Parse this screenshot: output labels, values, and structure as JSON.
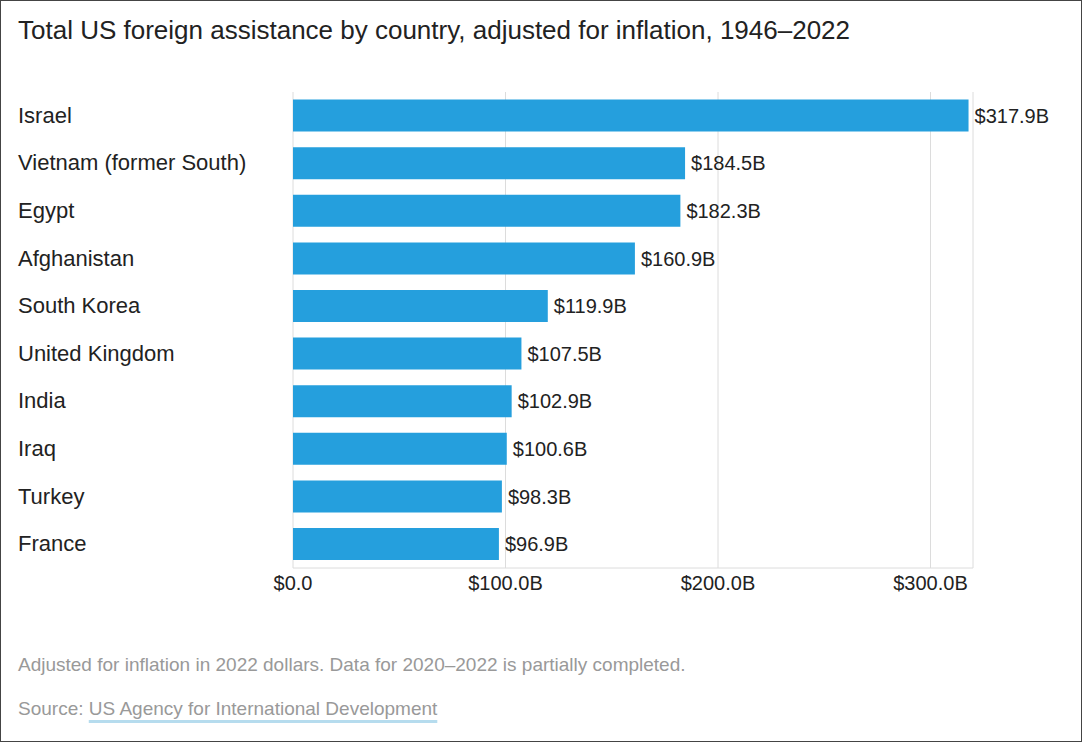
{
  "chart_data": {
    "type": "bar",
    "title": "Total US foreign assistance by country, adjusted for inflation, 1946–2022",
    "note": "Adjusted for inflation in 2022 dollars. Data for 2020–2022 is partially completed.",
    "source_label": "Source:",
    "source": "US Agency for International Development",
    "orientation": "horizontal",
    "categories": [
      "Israel",
      "Vietnam (former South)",
      "Egypt",
      "Afghanistan",
      "South Korea",
      "United Kingdom",
      "India",
      "Iraq",
      "Turkey",
      "France"
    ],
    "values": [
      317.9,
      184.5,
      182.3,
      160.9,
      119.9,
      107.5,
      102.9,
      100.6,
      98.3,
      96.9
    ],
    "value_labels": [
      "$317.9B",
      "$184.5B",
      "$182.3B",
      "$160.9B",
      "$119.9B",
      "$107.5B",
      "$102.9B",
      "$100.6B",
      "$98.3B",
      "$96.9B"
    ],
    "data_labels": true,
    "color": "#259fdd",
    "xlim": [
      0,
      320
    ],
    "xticks": [
      {
        "value": 0,
        "label": "$0.0"
      },
      {
        "value": 100,
        "label": "$100.0B"
      },
      {
        "value": 200,
        "label": "$200.0B"
      },
      {
        "value": 300,
        "label": "$300.0B"
      }
    ],
    "grid": true
  }
}
